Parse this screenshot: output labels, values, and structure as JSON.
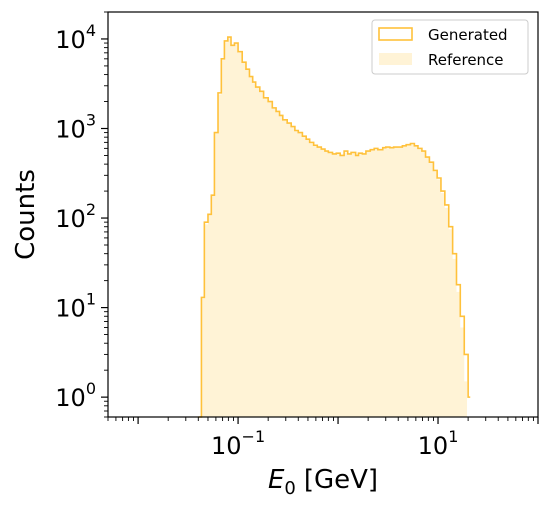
{
  "chart_data": {
    "type": "histogram",
    "xlabel_symbol": "E",
    "xlabel_sub": "0",
    "xlabel_unit": "[GeV]",
    "ylabel": "Counts",
    "x_scale": "log",
    "y_scale": "log",
    "xlim": [
      0.005,
      100
    ],
    "ylim": [
      0.6,
      20000
    ],
    "x_ticks": [
      {
        "value": 0.1,
        "base": "10",
        "exp": "−1"
      },
      {
        "value": 10,
        "base": "10",
        "exp": "1"
      }
    ],
    "y_ticks": [
      {
        "value": 1,
        "base": "10",
        "exp": "0"
      },
      {
        "value": 10,
        "base": "10",
        "exp": "1"
      },
      {
        "value": 100,
        "base": "10",
        "exp": "2"
      },
      {
        "value": 1000,
        "base": "10",
        "exp": "3"
      },
      {
        "value": 10000,
        "base": "10",
        "exp": "4"
      }
    ],
    "grid": false,
    "legend_position": "top-right",
    "series": [
      {
        "name": "Generated",
        "style": "step",
        "color": "#ffc13b",
        "points": [
          [
            0.04,
            0.6
          ],
          [
            0.043,
            13
          ],
          [
            0.046,
            90
          ],
          [
            0.05,
            110
          ],
          [
            0.054,
            180
          ],
          [
            0.058,
            900
          ],
          [
            0.063,
            2500
          ],
          [
            0.068,
            6000
          ],
          [
            0.073,
            9500
          ],
          [
            0.079,
            10500
          ],
          [
            0.085,
            8500
          ],
          [
            0.092,
            9000
          ],
          [
            0.1,
            7200
          ],
          [
            0.11,
            5500
          ],
          [
            0.12,
            4600
          ],
          [
            0.13,
            3800
          ],
          [
            0.14,
            3300
          ],
          [
            0.15,
            2900
          ],
          [
            0.165,
            2600
          ],
          [
            0.18,
            2200
          ],
          [
            0.2,
            2000
          ],
          [
            0.22,
            1700
          ],
          [
            0.24,
            1550
          ],
          [
            0.26,
            1400
          ],
          [
            0.28,
            1250
          ],
          [
            0.31,
            1150
          ],
          [
            0.34,
            1050
          ],
          [
            0.37,
            950
          ],
          [
            0.4,
            900
          ],
          [
            0.44,
            820
          ],
          [
            0.48,
            760
          ],
          [
            0.52,
            700
          ],
          [
            0.57,
            650
          ],
          [
            0.62,
            620
          ],
          [
            0.68,
            590
          ],
          [
            0.74,
            560
          ],
          [
            0.8,
            540
          ],
          [
            0.88,
            520
          ],
          [
            0.96,
            530
          ],
          [
            1.05,
            500
          ],
          [
            1.15,
            560
          ],
          [
            1.25,
            520
          ],
          [
            1.35,
            540
          ],
          [
            1.5,
            500
          ],
          [
            1.6,
            530
          ],
          [
            1.75,
            520
          ],
          [
            1.9,
            560
          ],
          [
            2.1,
            580
          ],
          [
            2.3,
            600
          ],
          [
            2.5,
            580
          ],
          [
            2.8,
            610
          ],
          [
            3.0,
            620
          ],
          [
            3.3,
            610
          ],
          [
            3.6,
            620
          ],
          [
            4.0,
            620
          ],
          [
            4.4,
            640
          ],
          [
            4.8,
            660
          ],
          [
            5.3,
            680
          ],
          [
            5.8,
            640
          ],
          [
            6.3,
            600
          ],
          [
            6.9,
            560
          ],
          [
            7.5,
            480
          ],
          [
            8.2,
            420
          ],
          [
            9.0,
            340
          ],
          [
            9.8,
            280
          ],
          [
            10.7,
            200
          ],
          [
            11.7,
            140
          ],
          [
            12.8,
            80
          ],
          [
            14.0,
            40
          ],
          [
            15.3,
            18
          ],
          [
            16.7,
            8
          ],
          [
            18.3,
            3
          ],
          [
            20.0,
            1
          ],
          [
            21.0,
            0.6
          ]
        ]
      },
      {
        "name": "Reference",
        "style": "filled",
        "color": "#fff3d6",
        "points": [
          [
            0.04,
            0.6
          ],
          [
            0.043,
            13
          ],
          [
            0.046,
            85
          ],
          [
            0.05,
            110
          ],
          [
            0.054,
            180
          ],
          [
            0.058,
            880
          ],
          [
            0.063,
            2400
          ],
          [
            0.068,
            5800
          ],
          [
            0.073,
            9200
          ],
          [
            0.079,
            10200
          ],
          [
            0.085,
            8400
          ],
          [
            0.092,
            8800
          ],
          [
            0.1,
            7000
          ],
          [
            0.11,
            5400
          ],
          [
            0.12,
            4500
          ],
          [
            0.13,
            3700
          ],
          [
            0.14,
            3200
          ],
          [
            0.15,
            2850
          ],
          [
            0.165,
            2550
          ],
          [
            0.18,
            2150
          ],
          [
            0.2,
            1950
          ],
          [
            0.22,
            1680
          ],
          [
            0.24,
            1520
          ],
          [
            0.26,
            1380
          ],
          [
            0.28,
            1230
          ],
          [
            0.31,
            1130
          ],
          [
            0.34,
            1030
          ],
          [
            0.37,
            940
          ],
          [
            0.4,
            880
          ],
          [
            0.44,
            810
          ],
          [
            0.48,
            750
          ],
          [
            0.52,
            690
          ],
          [
            0.57,
            640
          ],
          [
            0.62,
            610
          ],
          [
            0.68,
            580
          ],
          [
            0.74,
            550
          ],
          [
            0.8,
            530
          ],
          [
            0.88,
            515
          ],
          [
            0.96,
            520
          ],
          [
            1.05,
            500
          ],
          [
            1.15,
            540
          ],
          [
            1.25,
            515
          ],
          [
            1.35,
            530
          ],
          [
            1.5,
            500
          ],
          [
            1.6,
            520
          ],
          [
            1.75,
            515
          ],
          [
            1.9,
            550
          ],
          [
            2.1,
            570
          ],
          [
            2.3,
            590
          ],
          [
            2.5,
            575
          ],
          [
            2.8,
            600
          ],
          [
            3.0,
            610
          ],
          [
            3.3,
            600
          ],
          [
            3.6,
            615
          ],
          [
            4.0,
            610
          ],
          [
            4.4,
            630
          ],
          [
            4.8,
            650
          ],
          [
            5.3,
            670
          ],
          [
            5.8,
            630
          ],
          [
            6.3,
            590
          ],
          [
            6.9,
            550
          ],
          [
            7.5,
            470
          ],
          [
            8.2,
            410
          ],
          [
            9.0,
            330
          ],
          [
            9.8,
            270
          ],
          [
            10.7,
            190
          ],
          [
            11.7,
            130
          ],
          [
            12.8,
            75
          ],
          [
            14.0,
            35
          ],
          [
            15.3,
            15
          ],
          [
            16.7,
            6
          ],
          [
            18.3,
            1.5
          ],
          [
            19.5,
            0.6
          ]
        ]
      }
    ]
  },
  "colors": {
    "generated_line": "#ffc13b",
    "reference_fill": "#fff3d6",
    "legend_border": "#cccccc"
  }
}
